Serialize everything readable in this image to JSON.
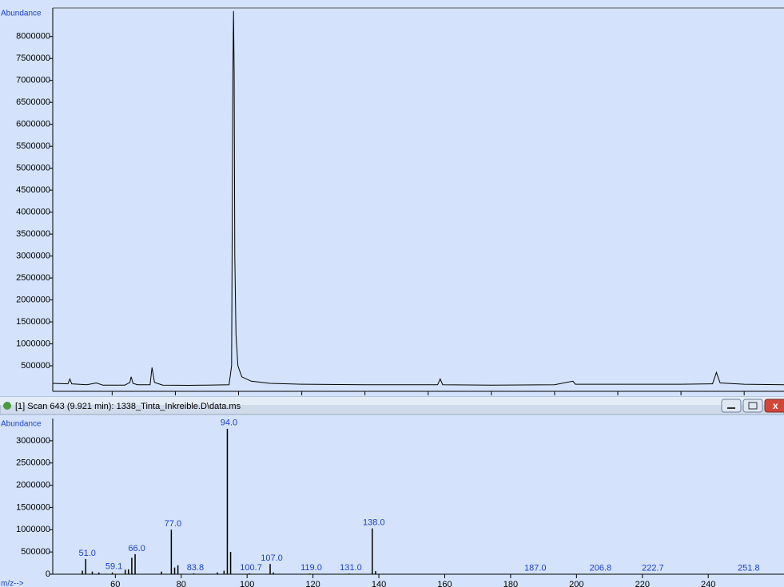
{
  "window": {
    "title": "[1] Scan 643 (9.921 min): 1338_Tinta_Inkreible.D\\data.ms"
  },
  "chart_data": [
    {
      "type": "line",
      "ylabel": "Abundance",
      "color": "#000000",
      "x": [
        7.06,
        7.3,
        7.33,
        7.36,
        7.6,
        7.75,
        7.85,
        8.2,
        8.28,
        8.3,
        8.33,
        8.4,
        8.6,
        8.63,
        8.67,
        8.8,
        9.2,
        9.5,
        9.85,
        9.89,
        9.9,
        9.91,
        9.92,
        9.93,
        9.94,
        9.96,
        9.99,
        10.05,
        10.2,
        10.5,
        11,
        12,
        13.15,
        13.19,
        13.23,
        14,
        15,
        15.29,
        15.33,
        16,
        17,
        17.5,
        17.56,
        17.62,
        18,
        18.63
      ],
      "values": [
        100000,
        90000,
        200000,
        90000,
        70000,
        110000,
        60000,
        60000,
        120000,
        250000,
        100000,
        70000,
        70000,
        460000,
        120000,
        60000,
        55000,
        60000,
        70000,
        500000,
        3800000,
        7200000,
        8580000,
        7200000,
        3000000,
        1200000,
        500000,
        250000,
        150000,
        100000,
        80000,
        70000,
        70000,
        200000,
        70000,
        60000,
        70000,
        150000,
        80000,
        80000,
        80000,
        90000,
        350000,
        110000,
        80000,
        70000
      ],
      "xlim": [
        7.06,
        18.63
      ],
      "xticks": [
        8,
        9,
        10,
        11,
        12,
        13,
        14,
        15,
        16,
        17,
        18
      ],
      "ylim": [
        0,
        8650000
      ],
      "yticks": [
        500000,
        1000000,
        1500000,
        2000000,
        2500000,
        3000000,
        3500000,
        4000000,
        4500000,
        5000000,
        5500000,
        6000000,
        6500000,
        7000000,
        7500000,
        8000000
      ]
    },
    {
      "type": "bar",
      "ylabel": "Abundance",
      "xlabel": "m/z-->",
      "color": "#000000",
      "label_color": "#1a3fcc",
      "x": [
        50,
        51,
        53,
        55,
        59.1,
        63,
        64,
        65,
        66,
        74,
        77,
        78,
        79,
        83.8,
        91,
        93,
        94,
        95,
        100.7,
        107,
        108,
        119,
        131,
        138,
        139,
        187,
        206.8,
        222.7,
        251.8
      ],
      "values": [
        80000,
        340000,
        60000,
        40000,
        40000,
        100000,
        110000,
        370000,
        450000,
        60000,
        1000000,
        150000,
        200000,
        20000,
        40000,
        80000,
        3270000,
        500000,
        20000,
        230000,
        40000,
        15000,
        15000,
        1030000,
        70000,
        10000,
        8000,
        8000,
        6000
      ],
      "x_labels": [
        null,
        "51.0",
        null,
        null,
        "59.1",
        null,
        null,
        null,
        "66.0",
        null,
        "77.0",
        null,
        null,
        "83.8",
        null,
        null,
        "94.0",
        null,
        "100.7",
        "107.0",
        null,
        "119.0",
        "131.0",
        "138.0",
        null,
        "187.0",
        "206.8",
        "222.7",
        "251.8"
      ],
      "xlim": [
        41,
        263
      ],
      "xticks": [
        60,
        80,
        100,
        120,
        140,
        160,
        180,
        200,
        220,
        240
      ],
      "ylim": [
        0,
        3500000
      ],
      "yticks": [
        0,
        500000,
        1000000,
        1500000,
        2000000,
        2500000,
        3000000
      ]
    }
  ]
}
